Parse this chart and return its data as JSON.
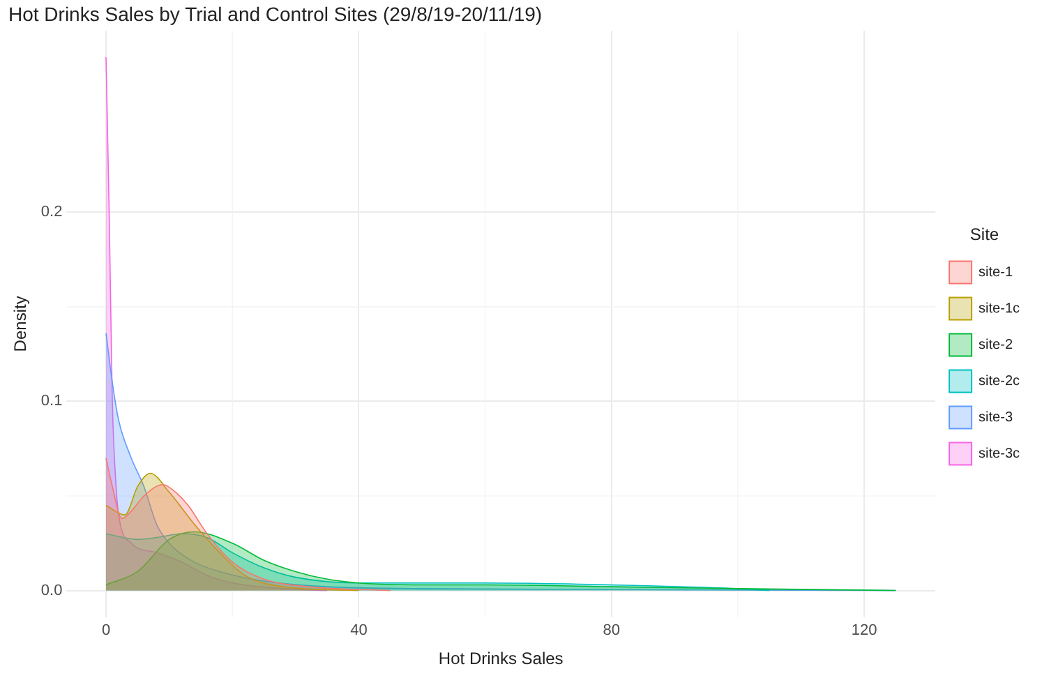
{
  "chart_data": {
    "type": "area",
    "title": "Hot Drinks Sales by Trial and Control Sites (29/8/19-20/11/19)",
    "xlabel": "Hot Drinks Sales",
    "ylabel": "Density",
    "legend_title": "Site",
    "legend": "right",
    "grid": true,
    "marker": "none",
    "xlim": [
      -6.25,
      131.25
    ],
    "xticks": [
      0,
      40,
      80,
      120
    ],
    "ylim": [
      -0.0141,
      0.296
    ],
    "yticks": [
      {
        "value": 0,
        "label": "0.0"
      },
      {
        "value": 0.1,
        "label": "0.1"
      },
      {
        "value": 0.2,
        "label": "0.2"
      }
    ],
    "series": [
      {
        "name": "site-1",
        "color": "#f8766d",
        "x": [
          0,
          1,
          2.5,
          4,
          6,
          9,
          11,
          13,
          16,
          20,
          25,
          32,
          45
        ],
        "values": [
          0.07,
          0.055,
          0.038,
          0.042,
          0.05,
          0.056,
          0.052,
          0.045,
          0.03,
          0.015,
          0.006,
          0.002,
          0
        ]
      },
      {
        "name": "site-1c",
        "color": "#b79f00",
        "x": [
          0,
          3,
          5,
          7,
          10,
          14,
          18,
          22,
          28,
          40
        ],
        "values": [
          0.045,
          0.04,
          0.055,
          0.062,
          0.052,
          0.035,
          0.02,
          0.008,
          0.002,
          0
        ]
      },
      {
        "name": "site-2",
        "color": "#00ba38",
        "x": [
          0,
          5,
          10,
          14,
          20,
          25,
          30,
          35,
          40,
          50,
          60,
          80,
          100,
          125
        ],
        "values": [
          0.003,
          0.01,
          0.027,
          0.031,
          0.025,
          0.016,
          0.01,
          0.006,
          0.004,
          0.003,
          0.003,
          0.002,
          0.001,
          0
        ]
      },
      {
        "name": "site-2c",
        "color": "#00bfc4",
        "x": [
          0,
          5,
          8,
          12,
          16,
          20,
          25,
          30,
          40,
          60,
          80,
          100,
          105
        ],
        "values": [
          0.03,
          0.027,
          0.028,
          0.03,
          0.028,
          0.02,
          0.012,
          0.007,
          0.004,
          0.004,
          0.003,
          0.001,
          0
        ]
      },
      {
        "name": "site-3",
        "color": "#619cff",
        "x": [
          0,
          1,
          2,
          4,
          6,
          8,
          10,
          14,
          18,
          25,
          35,
          50,
          80,
          125
        ],
        "values": [
          0.136,
          0.11,
          0.09,
          0.07,
          0.055,
          0.035,
          0.025,
          0.015,
          0.01,
          0.005,
          0.002,
          0.001,
          0.0005,
          0
        ]
      },
      {
        "name": "site-3c",
        "color": "#f564e3",
        "x": [
          0,
          0.5,
          1,
          1.5,
          2,
          4,
          8,
          12,
          16,
          20,
          28,
          35
        ],
        "values": [
          0.282,
          0.2,
          0.1,
          0.06,
          0.04,
          0.025,
          0.02,
          0.015,
          0.008,
          0.004,
          0.001,
          0
        ]
      }
    ]
  }
}
